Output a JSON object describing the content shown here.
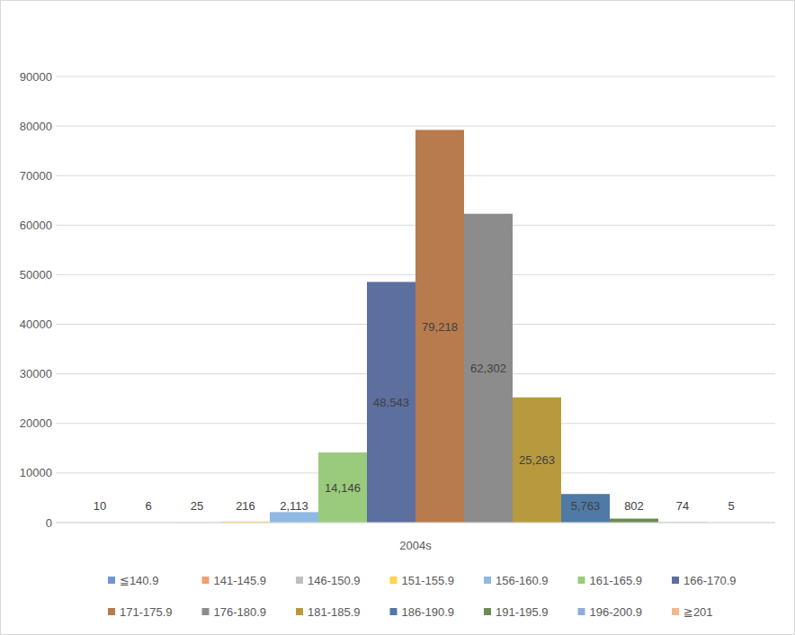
{
  "chart_data": {
    "type": "bar",
    "categories": [
      "2004s"
    ],
    "series": [
      {
        "name": "≦140.9",
        "color": "#7095d2",
        "values": [
          10
        ]
      },
      {
        "name": "141-145.9",
        "color": "#f0a070",
        "values": [
          6
        ]
      },
      {
        "name": "146-150.9",
        "color": "#bfbfbf",
        "values": [
          25
        ]
      },
      {
        "name": "151-155.9",
        "color": "#ffd24d",
        "values": [
          216
        ]
      },
      {
        "name": "156-160.9",
        "color": "#8fb8e2",
        "values": [
          2113
        ],
        "value_labels": [
          "2,113"
        ]
      },
      {
        "name": "161-165.9",
        "color": "#9acb7c",
        "values": [
          14146
        ],
        "value_labels": [
          "14,146"
        ]
      },
      {
        "name": "166-170.9",
        "color": "#5c6f9e",
        "values": [
          48543
        ],
        "value_labels": [
          "48,543"
        ]
      },
      {
        "name": "171-175.9",
        "color": "#b77b4e",
        "values": [
          79218
        ],
        "value_labels": [
          "79,218"
        ]
      },
      {
        "name": "176-180.9",
        "color": "#8c8c8c",
        "values": [
          62302
        ],
        "value_labels": [
          "62,302"
        ]
      },
      {
        "name": "181-185.9",
        "color": "#b89a3e",
        "values": [
          25263
        ],
        "value_labels": [
          "25,263"
        ]
      },
      {
        "name": "186-190.9",
        "color": "#4f7aa6",
        "values": [
          5763
        ],
        "value_labels": [
          "5,763"
        ]
      },
      {
        "name": "191-195.9",
        "color": "#6c8c55",
        "values": [
          802
        ]
      },
      {
        "name": "196-200.9",
        "color": "#93acd9",
        "values": [
          74
        ]
      },
      {
        "name": "≧201",
        "color": "#f5b78c",
        "values": [
          5
        ]
      }
    ],
    "ylim": [
      0,
      90000
    ],
    "yticks": [
      0,
      10000,
      20000,
      30000,
      40000,
      50000,
      60000,
      70000,
      80000,
      90000
    ],
    "grid": true,
    "legend": "bottom",
    "data_labels": true
  }
}
